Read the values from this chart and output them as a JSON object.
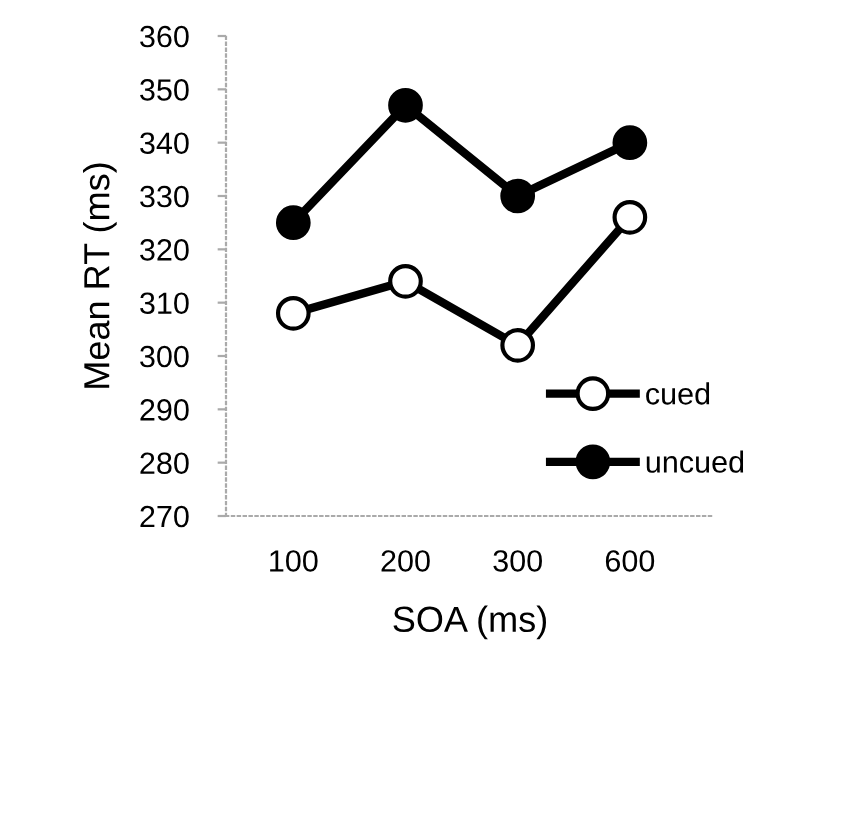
{
  "chart_data": {
    "type": "line",
    "xlabel": "SOA (ms)",
    "ylabel": "Mean RT (ms)",
    "categories": [
      "100",
      "200",
      "300",
      "600"
    ],
    "series": [
      {
        "name": "cued",
        "color": "#000000",
        "colors": [
          "#ffffff",
          "#ffffff",
          "#ffffff",
          "#ffffff"
        ],
        "values": [
          308,
          314,
          302,
          326
        ]
      },
      {
        "name": "uncued",
        "color": "#000000",
        "colors": [
          "#000000",
          "#000000",
          "#000000",
          "#000000"
        ],
        "values": [
          325,
          347,
          330,
          340
        ]
      }
    ],
    "ylim": [
      270,
      360
    ],
    "yticks": [
      270,
      280,
      290,
      300,
      310,
      320,
      330,
      340,
      350,
      360
    ],
    "marker": "circle",
    "line_style": "solid",
    "legend": "bottom right",
    "grid": false
  }
}
